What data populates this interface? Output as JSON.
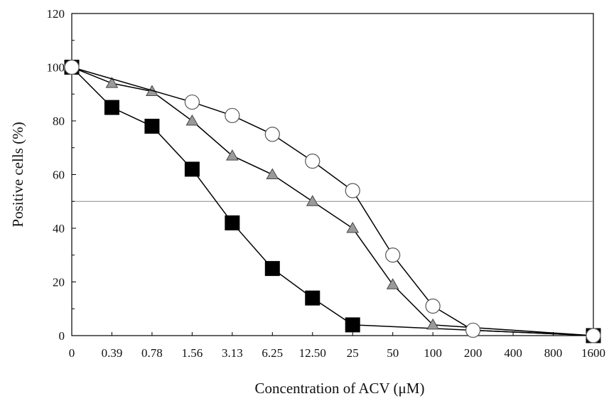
{
  "chart_data": {
    "type": "line",
    "title": "",
    "xlabel": "Concentration of ACV (μM)",
    "ylabel": "Positive cells (%)",
    "categories": [
      "0",
      "0.39",
      "0.78",
      "1.56",
      "3.13",
      "6.25",
      "12.50",
      "25",
      "50",
      "100",
      "200",
      "400",
      "800",
      "1600"
    ],
    "ylim": [
      0,
      120
    ],
    "yticks": [
      0,
      20,
      40,
      60,
      80,
      100,
      120
    ],
    "reference_line": {
      "y": 50,
      "style": "thin gray horizontal line"
    },
    "grid": false,
    "legend": "none",
    "series": [
      {
        "marker": "square",
        "color": "#000000",
        "points": [
          [
            0,
            100
          ],
          [
            1,
            85
          ],
          [
            2,
            78
          ],
          [
            3,
            62
          ],
          [
            4,
            42
          ],
          [
            5,
            25
          ],
          [
            6,
            14
          ],
          [
            7,
            4
          ],
          [
            13,
            0
          ]
        ]
      },
      {
        "marker": "triangle",
        "color": "#9a9a9a",
        "points": [
          [
            0,
            100
          ],
          [
            1,
            94
          ],
          [
            2,
            91
          ],
          [
            3,
            80
          ],
          [
            4,
            67
          ],
          [
            5,
            60
          ],
          [
            6,
            50
          ],
          [
            7,
            40
          ],
          [
            8,
            19
          ],
          [
            9,
            4
          ],
          [
            13,
            0
          ]
        ]
      },
      {
        "marker": "circle",
        "color": "#ffffff",
        "points": [
          [
            0,
            100
          ],
          [
            3,
            87
          ],
          [
            4,
            82
          ],
          [
            5,
            75
          ],
          [
            6,
            65
          ],
          [
            7,
            54
          ],
          [
            8,
            30
          ],
          [
            9,
            11
          ],
          [
            10,
            2
          ],
          [
            13,
            0
          ]
        ]
      }
    ]
  }
}
